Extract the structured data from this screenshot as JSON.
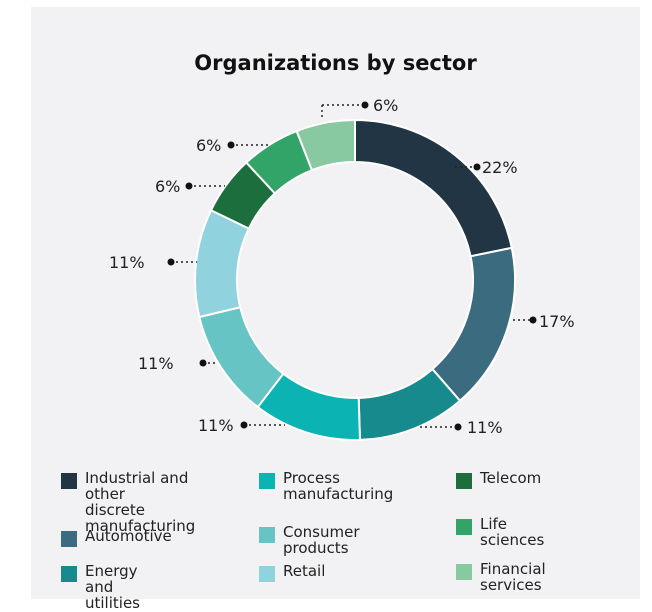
{
  "chart_data": {
    "type": "pie",
    "variant": "donut",
    "title": "Organizations by sector",
    "legend_position": "bottom",
    "slices": [
      {
        "label": "Industrial and other discrete manufacturing",
        "legend_lines": [
          "Industrial and other",
          "discrete",
          "manufacturing"
        ],
        "value": 22,
        "display": "22%",
        "color": "#213545"
      },
      {
        "label": "Automotive",
        "legend_lines": [
          "Automotive"
        ],
        "value": 17,
        "display": "17%",
        "color": "#3b6b7f"
      },
      {
        "label": "Energy and utilities",
        "legend_lines": [
          "Energy and utilities"
        ],
        "value": 11,
        "display": "11%",
        "color": "#178a8e"
      },
      {
        "label": "Process manufacturing",
        "legend_lines": [
          "Process",
          "manufacturing"
        ],
        "value": 11,
        "display": "11%",
        "color": "#0bb3b3"
      },
      {
        "label": "Consumer products",
        "legend_lines": [
          "Consumer products"
        ],
        "value": 11,
        "display": "11%",
        "color": "#66c4c4"
      },
      {
        "label": "Retail",
        "legend_lines": [
          "Retail"
        ],
        "value": 11,
        "display": "11%",
        "color": "#90d2de"
      },
      {
        "label": "Telecom",
        "legend_lines": [
          "Telecom"
        ],
        "value": 6,
        "display": "6%",
        "color": "#1c6e3d"
      },
      {
        "label": "Life sciences",
        "legend_lines": [
          "Life sciences"
        ],
        "value": 6,
        "display": "6%",
        "color": "#33a467"
      },
      {
        "label": "Financial services",
        "legend_lines": [
          "Financial services"
        ],
        "value": 6,
        "display": "6%",
        "color": "#88c9a1"
      }
    ]
  }
}
